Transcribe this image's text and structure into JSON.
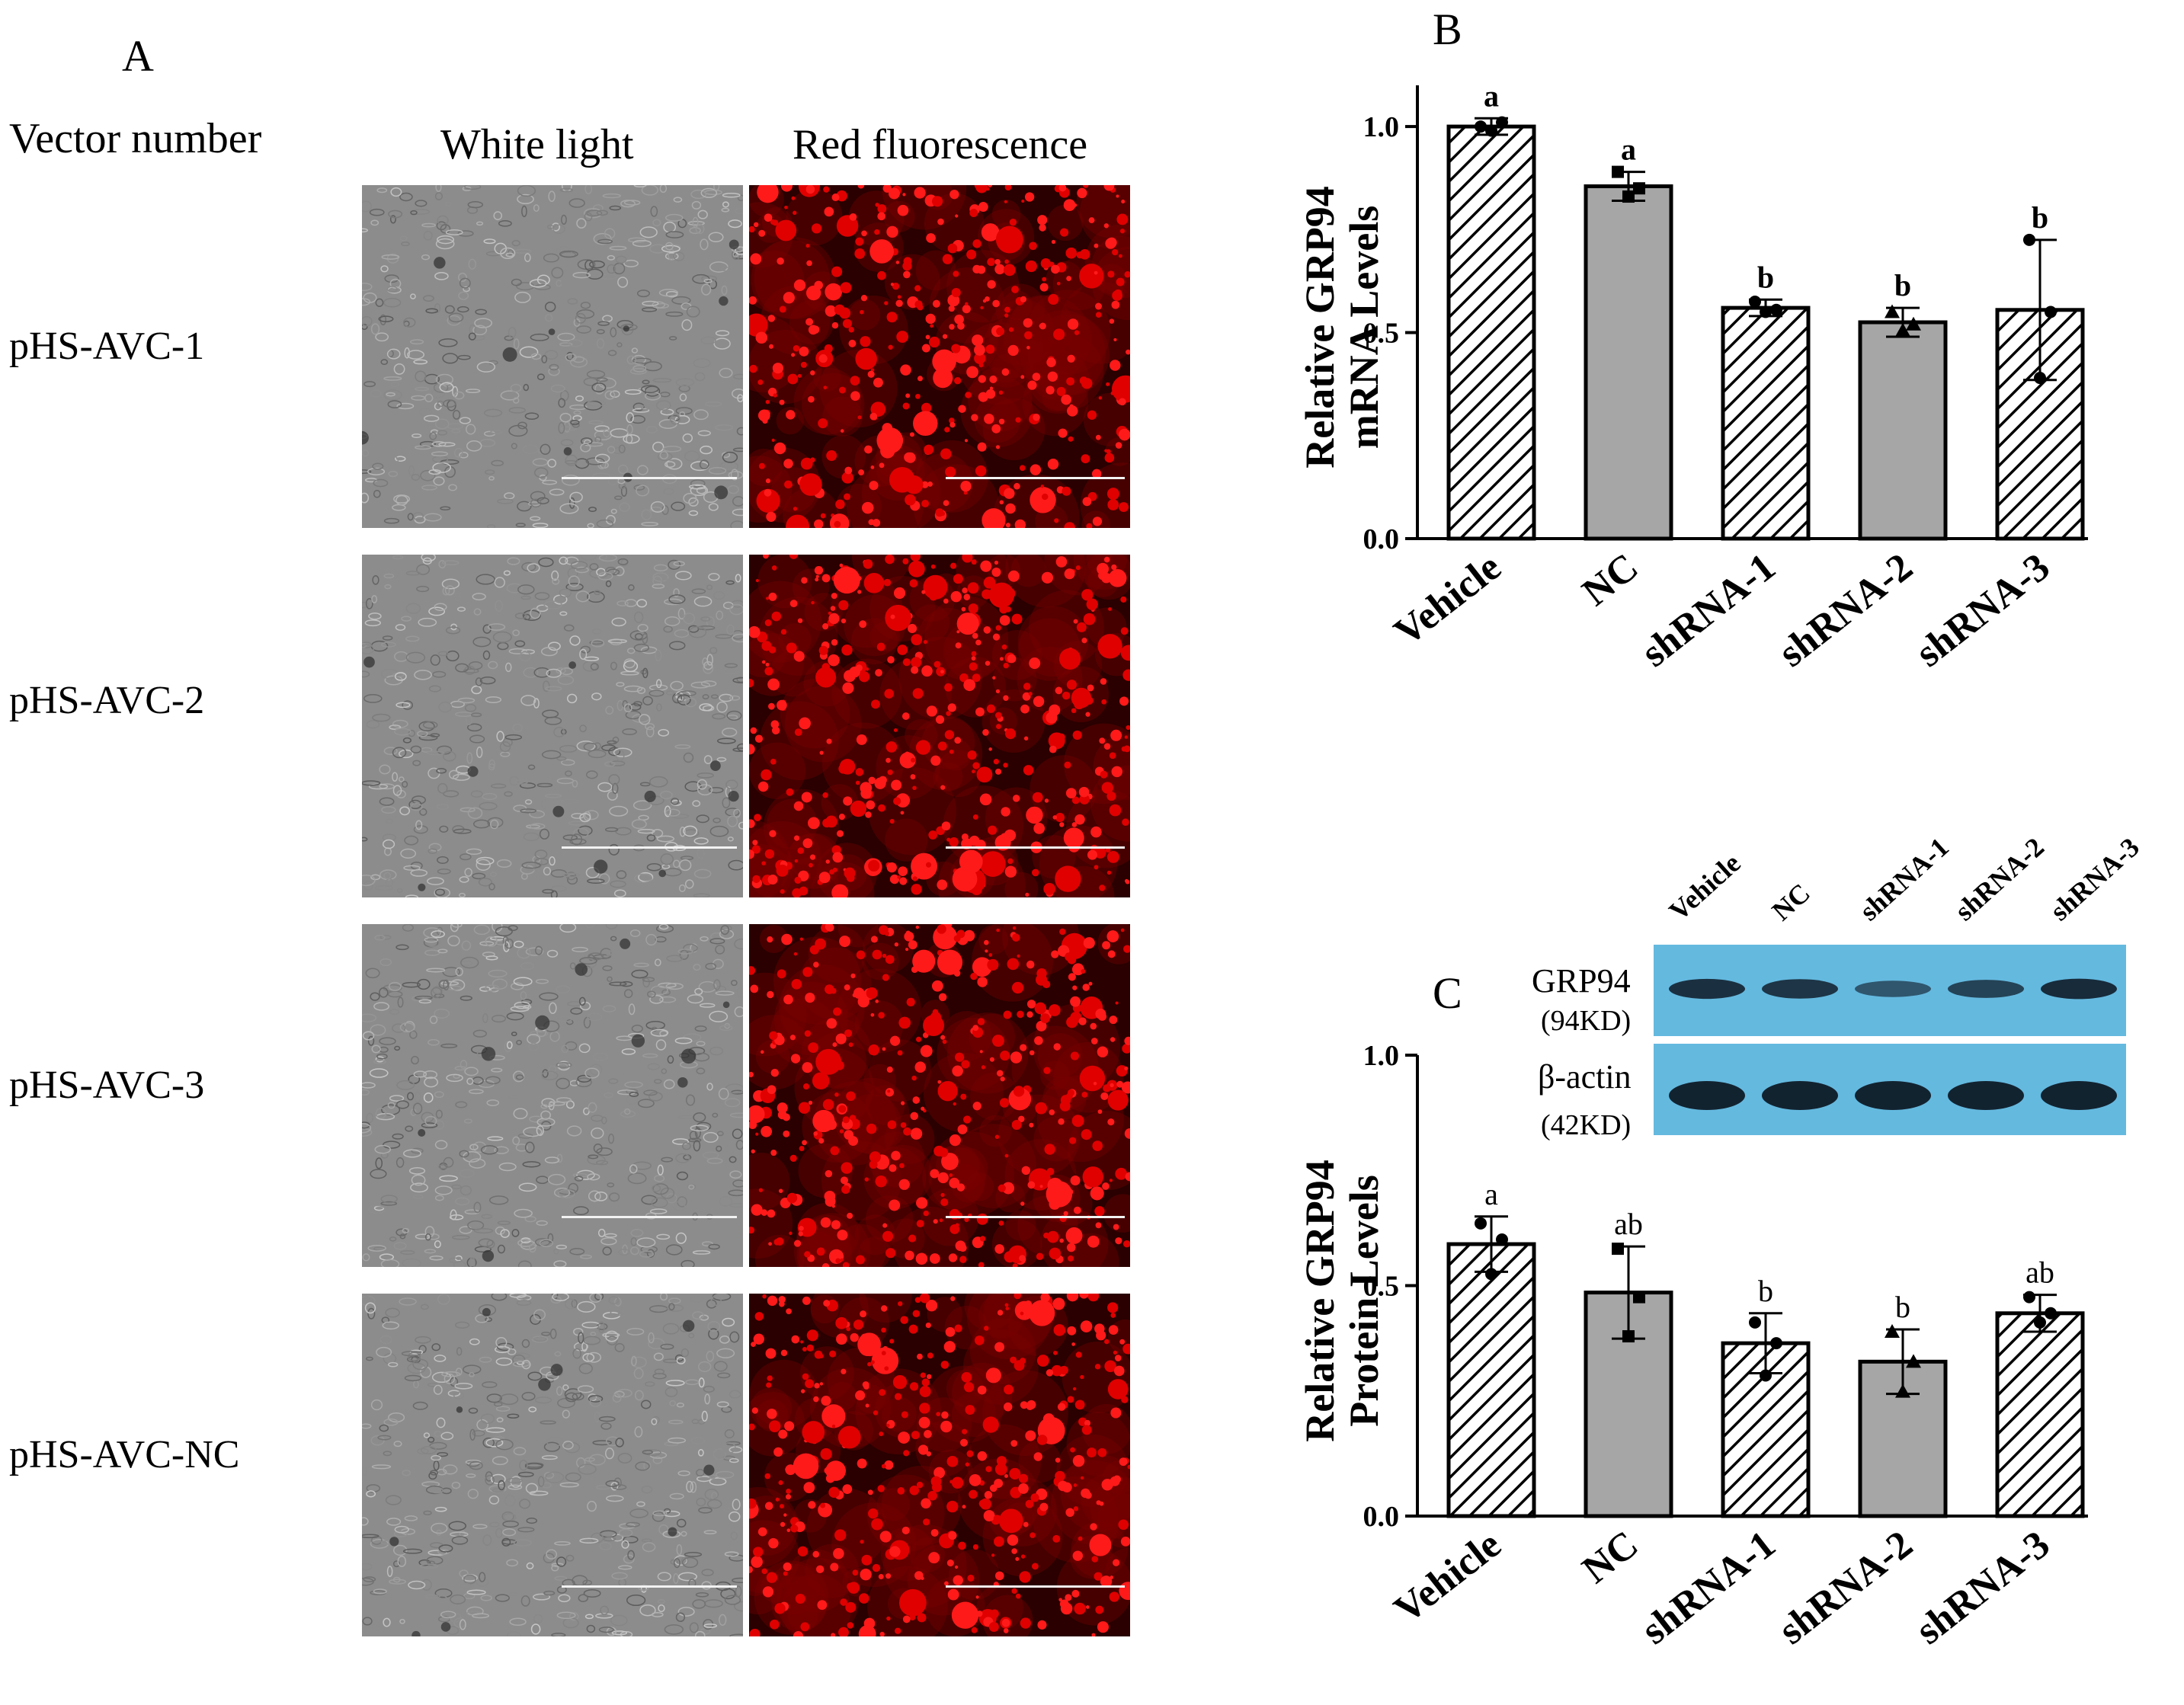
{
  "panel_a": {
    "letter": "A",
    "row_header": "Vector number",
    "col_headers": [
      "White light",
      "Red fluorescence"
    ],
    "rows": [
      "pHS-AVC-1",
      "pHS-AVC-2",
      "pHS-AVC-3",
      "pHS-AVC-NC"
    ]
  },
  "panel_b": {
    "letter": "B"
  },
  "panel_c": {
    "letter": "C"
  },
  "western_blot": {
    "lanes": [
      "Vehicle",
      "NC",
      "shRNA-1",
      "shRNA-2",
      "shRNA-3"
    ],
    "bands": [
      {
        "name": "GRP94",
        "size": "(94KD)",
        "intensity": [
          0.85,
          0.8,
          0.45,
          0.65,
          0.9
        ]
      },
      {
        "name": "β-actin",
        "size": "(42KD)",
        "intensity": [
          1.0,
          1.0,
          1.0,
          1.0,
          1.0
        ]
      }
    ],
    "colors": {
      "membrane": "#64b9df",
      "band": "#0e1a26"
    }
  },
  "chart_data": [
    {
      "type": "bar",
      "ylabel": [
        "Relative GRP94",
        "mRNA Levels"
      ],
      "categories": [
        "Vehicle",
        "NC",
        "shRNA-1",
        "shRNA-2",
        "shRNA-3"
      ],
      "values": [
        1.0,
        0.855,
        0.56,
        0.525,
        0.555
      ],
      "error": [
        0.02,
        0.035,
        0.02,
        0.035,
        0.17
      ],
      "points": [
        [
          1.0,
          1.01,
          0.99
        ],
        [
          0.89,
          0.85,
          0.83
        ],
        [
          0.575,
          0.555,
          0.55
        ],
        [
          0.55,
          0.52,
          0.505
        ],
        [
          0.725,
          0.55,
          0.39
        ]
      ],
      "letters": [
        "a",
        "a",
        "b",
        "b",
        "b"
      ],
      "fills": [
        "hatch",
        "gray",
        "hatch",
        "gray",
        "hatch"
      ],
      "ylim": [
        0,
        1.1
      ],
      "yticks": [
        "0.0",
        "0.5",
        "1.0"
      ],
      "colors": {
        "gray": "#a6a6a6",
        "hatch": "#000000"
      }
    },
    {
      "type": "bar",
      "ylabel": [
        "Relative GRP94",
        "Protein Levels"
      ],
      "categories": [
        "Vehicle",
        "NC",
        "shRNA-1",
        "shRNA-2",
        "shRNA-3"
      ],
      "values": [
        0.59,
        0.485,
        0.375,
        0.335,
        0.44
      ],
      "error": [
        0.06,
        0.1,
        0.065,
        0.07,
        0.04
      ],
      "points": [
        [
          0.635,
          0.6,
          0.525
        ],
        [
          0.58,
          0.475,
          0.39
        ],
        [
          0.42,
          0.375,
          0.305
        ],
        [
          0.4,
          0.335,
          0.27
        ],
        [
          0.475,
          0.44,
          0.42
        ]
      ],
      "letters": [
        "a",
        "ab",
        "b",
        "b",
        "ab"
      ],
      "fills": [
        "hatch",
        "gray",
        "hatch",
        "gray",
        "hatch"
      ],
      "ylim": [
        0,
        1.0
      ],
      "yticks": [
        "0.0",
        "0.5",
        "1.0"
      ],
      "colors": {
        "gray": "#a6a6a6",
        "hatch": "#000000"
      }
    }
  ]
}
